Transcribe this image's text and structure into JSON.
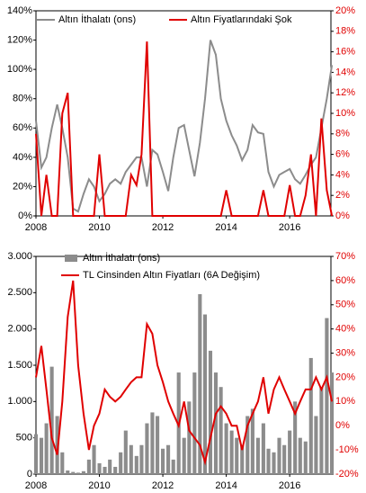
{
  "chart_data": [
    {
      "type": "line",
      "x": [
        2008.0,
        2008.17,
        2008.33,
        2008.5,
        2008.67,
        2008.83,
        2009.0,
        2009.17,
        2009.33,
        2009.5,
        2009.67,
        2009.83,
        2010.0,
        2010.17,
        2010.33,
        2010.5,
        2010.67,
        2010.83,
        2011.0,
        2011.17,
        2011.33,
        2011.5,
        2011.67,
        2011.83,
        2012.0,
        2012.17,
        2012.33,
        2012.5,
        2012.67,
        2012.83,
        2013.0,
        2013.17,
        2013.33,
        2013.5,
        2013.67,
        2013.83,
        2014.0,
        2014.17,
        2014.33,
        2014.5,
        2014.67,
        2014.83,
        2015.0,
        2015.17,
        2015.33,
        2015.5,
        2015.67,
        2015.83,
        2016.0,
        2016.17,
        2016.33,
        2016.5,
        2016.67,
        2016.83,
        2017.0,
        2017.17,
        2017.33
      ],
      "xlim": [
        2008,
        2017.3
      ],
      "xticks": [
        2008,
        2010,
        2012,
        2014,
        2016
      ],
      "ylim": [
        0,
        140
      ],
      "yticks": [
        {
          "value": 0,
          "label": "0%"
        },
        {
          "value": 20,
          "label": "20%"
        },
        {
          "value": 40,
          "label": "40%"
        },
        {
          "value": 60,
          "label": "60%"
        },
        {
          "value": 80,
          "label": "80%"
        },
        {
          "value": 100,
          "label": "100%"
        },
        {
          "value": 120,
          "label": "120%"
        },
        {
          "value": 140,
          "label": "140%"
        }
      ],
      "y2lim": [
        0,
        20
      ],
      "y2ticks": [
        {
          "value": 0,
          "label": "0%"
        },
        {
          "value": 2,
          "label": "2%"
        },
        {
          "value": 4,
          "label": "4%"
        },
        {
          "value": 6,
          "label": "6%"
        },
        {
          "value": 8,
          "label": "8%"
        },
        {
          "value": 10,
          "label": "10%"
        },
        {
          "value": 12,
          "label": "12%"
        },
        {
          "value": 14,
          "label": "14%"
        },
        {
          "value": 16,
          "label": "16%"
        },
        {
          "value": 18,
          "label": "18%"
        },
        {
          "value": 20,
          "label": "20%"
        }
      ],
      "series": [
        {
          "name": "Altın İthalatı (ons)",
          "color": "#8c8c8c",
          "values": [
            65,
            33,
            40,
            60,
            76,
            60,
            40,
            5,
            3,
            15,
            25,
            20,
            10,
            15,
            22,
            25,
            22,
            30,
            35,
            40,
            40,
            20,
            45,
            42,
            30,
            17,
            40,
            60,
            62,
            45,
            27,
            50,
            80,
            120,
            110,
            80,
            65,
            55,
            48,
            38,
            45,
            62,
            57,
            56,
            30,
            20,
            28,
            30,
            32,
            25,
            22,
            28,
            35,
            40,
            60,
            80,
            103
          ]
        },
        {
          "name": "Altın Fiyatlarındaki Şok",
          "color": "#e00000",
          "axis": "y2",
          "values": [
            8,
            0,
            4,
            0,
            0,
            10,
            12,
            0,
            0,
            0,
            0,
            0,
            6,
            0,
            0,
            0,
            0,
            0,
            4,
            3,
            6,
            17,
            0,
            0,
            0,
            0,
            0,
            0,
            0,
            0,
            0,
            0,
            0,
            0,
            0,
            0,
            2.5,
            0,
            0,
            0,
            0,
            0,
            0,
            2.5,
            0,
            0,
            0,
            0,
            3,
            0,
            0,
            2,
            6,
            0,
            9.5,
            2.5,
            0
          ]
        }
      ]
    },
    {
      "type": "combo",
      "x": [
        2008.0,
        2008.17,
        2008.33,
        2008.5,
        2008.67,
        2008.83,
        2009.0,
        2009.17,
        2009.33,
        2009.5,
        2009.67,
        2009.83,
        2010.0,
        2010.17,
        2010.33,
        2010.5,
        2010.67,
        2010.83,
        2011.0,
        2011.17,
        2011.33,
        2011.5,
        2011.67,
        2011.83,
        2012.0,
        2012.17,
        2012.33,
        2012.5,
        2012.67,
        2012.83,
        2013.0,
        2013.17,
        2013.33,
        2013.5,
        2013.67,
        2013.83,
        2014.0,
        2014.17,
        2014.33,
        2014.5,
        2014.67,
        2014.83,
        2015.0,
        2015.17,
        2015.33,
        2015.5,
        2015.67,
        2015.83,
        2016.0,
        2016.17,
        2016.33,
        2016.5,
        2016.67,
        2016.83,
        2017.0,
        2017.17,
        2017.33
      ],
      "xlim": [
        2008,
        2017.3
      ],
      "xticks": [
        2008,
        2010,
        2012,
        2014,
        2016
      ],
      "ylim": [
        0,
        3000
      ],
      "yticks": [
        0,
        500,
        {
          "value": 1000,
          "label": "1.000"
        },
        {
          "value": 1500,
          "label": "1.500"
        },
        {
          "value": 2000,
          "label": "2.000"
        },
        {
          "value": 2500,
          "label": "2.500"
        },
        {
          "value": 3000,
          "label": "3.000"
        }
      ],
      "y2lim": [
        -20,
        70
      ],
      "y2ticks": [
        {
          "value": -20,
          "label": "-20%"
        },
        {
          "value": -10,
          "label": "-10%"
        },
        {
          "value": 0,
          "label": "0%"
        },
        {
          "value": 10,
          "label": "10%"
        },
        {
          "value": 20,
          "label": "20%"
        },
        {
          "value": 30,
          "label": "30%"
        },
        {
          "value": 40,
          "label": "40%"
        },
        {
          "value": 50,
          "label": "50%"
        },
        {
          "value": 60,
          "label": "60%"
        },
        {
          "value": 70,
          "label": "70%"
        }
      ],
      "series": [
        {
          "name": "Altın İthalatı (ons)",
          "color": "#8c8c8c",
          "type": "bar",
          "values": [
            550,
            500,
            700,
            1480,
            800,
            300,
            50,
            30,
            20,
            40,
            200,
            400,
            150,
            100,
            200,
            100,
            300,
            600,
            400,
            250,
            400,
            700,
            850,
            800,
            350,
            400,
            200,
            1400,
            500,
            1000,
            1400,
            2480,
            2200,
            1700,
            1400,
            1200,
            700,
            600,
            500,
            400,
            800,
            900,
            500,
            700,
            350,
            300,
            500,
            400,
            600,
            1000,
            500,
            450,
            1600,
            800,
            1200,
            2150,
            1400
          ]
        },
        {
          "name": "TL Cinsinden Altın Fiyatları (6A Değişim)",
          "color": "#e00000",
          "type": "line",
          "axis": "y2",
          "values": [
            20,
            33,
            15,
            -5,
            -12,
            10,
            45,
            60,
            25,
            5,
            -10,
            0,
            5,
            15,
            12,
            10,
            12,
            15,
            18,
            20,
            20,
            42,
            38,
            25,
            18,
            10,
            5,
            0,
            10,
            -2,
            -5,
            -8,
            -15,
            -5,
            5,
            8,
            5,
            0,
            0,
            -10,
            0,
            5,
            10,
            20,
            5,
            15,
            20,
            15,
            10,
            5,
            10,
            15,
            15,
            20,
            15,
            20,
            10
          ]
        }
      ]
    }
  ]
}
